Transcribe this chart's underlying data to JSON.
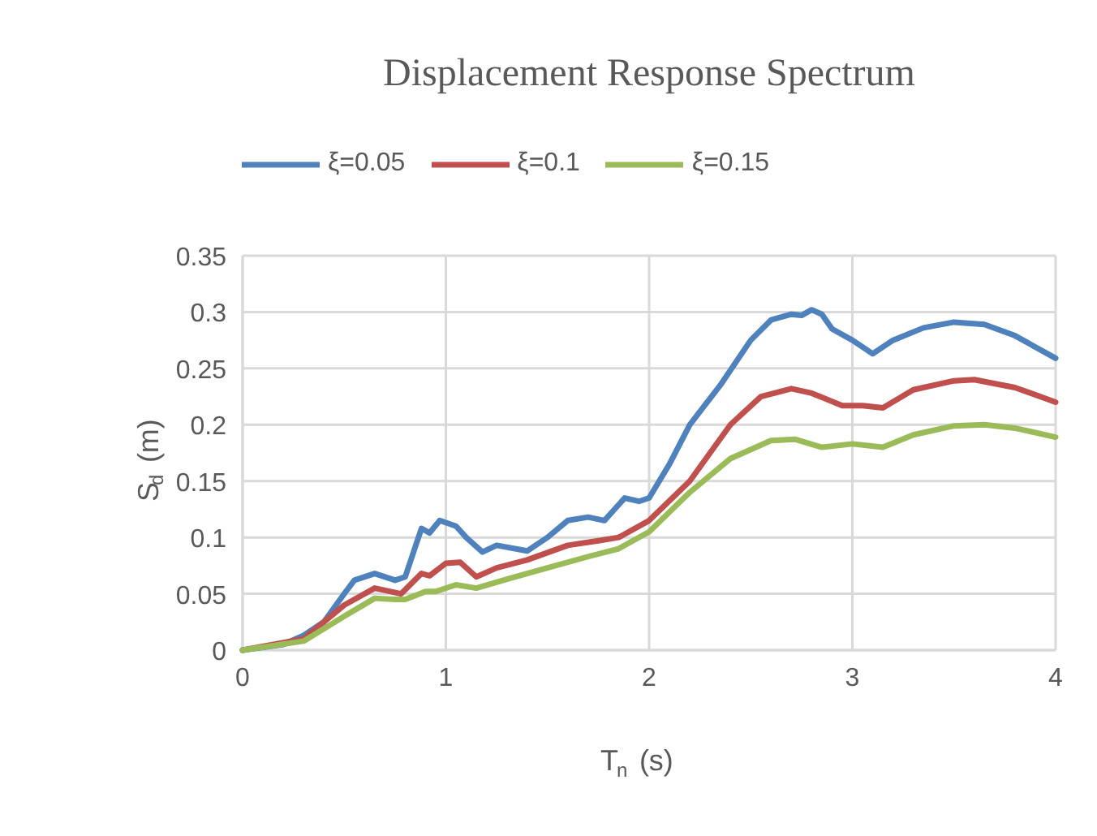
{
  "chart_data": {
    "type": "line",
    "title": "Displacement Response Spectrum",
    "xlabel": "T$_{n}$ (s)",
    "ylabel": "S$_{d}$ (m)",
    "xlim": [
      0,
      4
    ],
    "xticks": [
      0,
      1,
      2,
      3,
      4
    ],
    "ylim": [
      0,
      0.35
    ],
    "yticks": [
      0,
      0.05,
      0.1,
      0.15,
      0.2,
      0.25,
      0.3,
      0.35
    ],
    "grid": true,
    "legend": "top",
    "line_style": "solid",
    "marker": "none",
    "series": [
      {
        "name": "ξ=0.05",
        "color": "#4f81bd",
        "x": [
          0,
          0.2,
          0.3,
          0.4,
          0.5,
          0.55,
          0.65,
          0.75,
          0.8,
          0.88,
          0.92,
          0.97,
          1.05,
          1.1,
          1.18,
          1.25,
          1.4,
          1.5,
          1.6,
          1.7,
          1.78,
          1.88,
          1.95,
          2.0,
          2.1,
          2.2,
          2.35,
          2.5,
          2.6,
          2.7,
          2.75,
          2.8,
          2.85,
          2.9,
          3.0,
          3.1,
          3.2,
          3.35,
          3.5,
          3.65,
          3.8,
          4.0
        ],
        "values": [
          0,
          0.005,
          0.013,
          0.025,
          0.05,
          0.062,
          0.068,
          0.062,
          0.065,
          0.108,
          0.104,
          0.115,
          0.11,
          0.1,
          0.087,
          0.093,
          0.088,
          0.1,
          0.115,
          0.118,
          0.115,
          0.135,
          0.132,
          0.135,
          0.165,
          0.2,
          0.235,
          0.275,
          0.293,
          0.298,
          0.297,
          0.302,
          0.298,
          0.285,
          0.275,
          0.263,
          0.275,
          0.286,
          0.291,
          0.289,
          0.279,
          0.259
        ]
      },
      {
        "name": "ξ=0.1",
        "color": "#c0504d",
        "x": [
          0,
          0.3,
          0.5,
          0.65,
          0.78,
          0.88,
          0.92,
          1.0,
          1.07,
          1.15,
          1.25,
          1.4,
          1.6,
          1.75,
          1.85,
          2.0,
          2.2,
          2.4,
          2.55,
          2.7,
          2.8,
          2.95,
          3.05,
          3.15,
          3.3,
          3.5,
          3.6,
          3.8,
          4.0
        ],
        "values": [
          0,
          0.01,
          0.04,
          0.055,
          0.05,
          0.068,
          0.066,
          0.077,
          0.078,
          0.065,
          0.073,
          0.08,
          0.093,
          0.097,
          0.1,
          0.115,
          0.15,
          0.2,
          0.225,
          0.232,
          0.228,
          0.217,
          0.217,
          0.215,
          0.231,
          0.239,
          0.24,
          0.233,
          0.22
        ]
      },
      {
        "name": "ξ=0.15",
        "color": "#9bbb59",
        "x": [
          0,
          0.3,
          0.5,
          0.65,
          0.75,
          0.8,
          0.9,
          0.95,
          1.05,
          1.15,
          1.3,
          1.5,
          1.7,
          1.85,
          2.0,
          2.2,
          2.4,
          2.6,
          2.72,
          2.85,
          3.0,
          3.15,
          3.3,
          3.5,
          3.65,
          3.8,
          4.0
        ],
        "values": [
          0,
          0.008,
          0.03,
          0.046,
          0.045,
          0.045,
          0.052,
          0.052,
          0.058,
          0.055,
          0.063,
          0.073,
          0.083,
          0.09,
          0.105,
          0.14,
          0.17,
          0.186,
          0.187,
          0.18,
          0.183,
          0.18,
          0.191,
          0.199,
          0.2,
          0.197,
          0.189
        ]
      }
    ]
  }
}
